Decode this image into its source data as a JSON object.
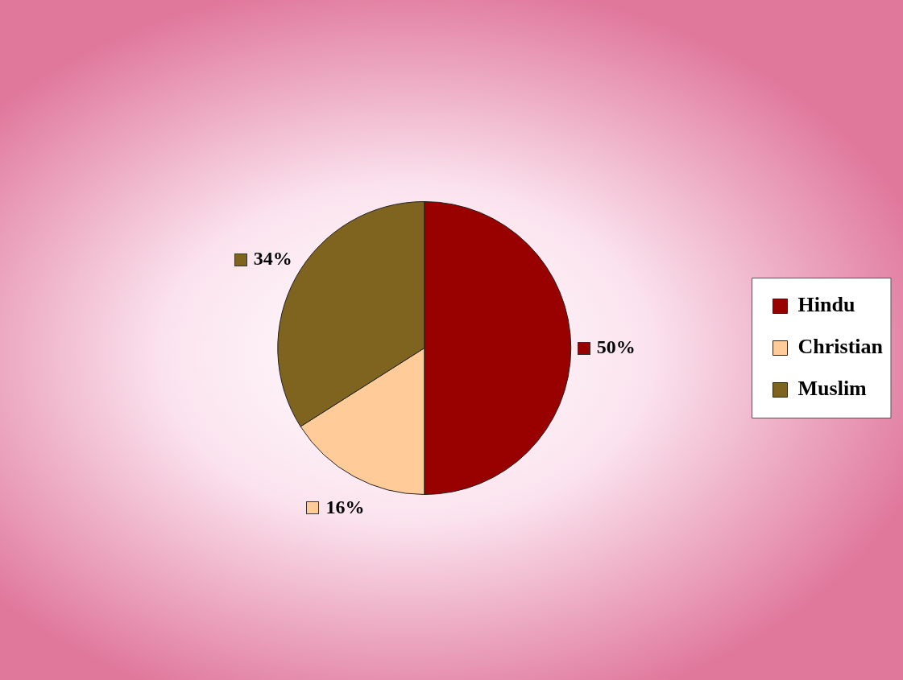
{
  "chart_data": {
    "type": "pie",
    "categories": [
      "Hindu",
      "Christian",
      "Muslim"
    ],
    "values": [
      50,
      16,
      34
    ],
    "colors": [
      "#990000",
      "#ffcc99",
      "#7f6420"
    ],
    "value_labels": [
      "50%",
      "16%",
      "34%"
    ],
    "legend": "right"
  }
}
